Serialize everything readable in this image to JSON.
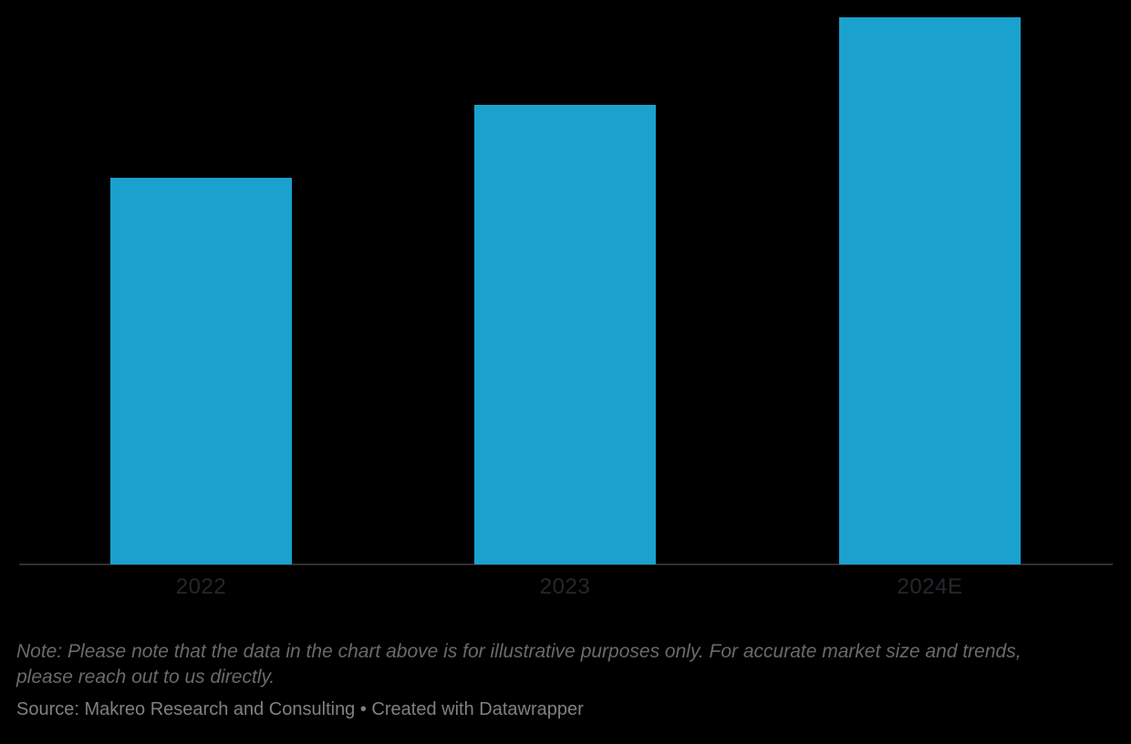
{
  "chart_data": {
    "type": "bar",
    "categories": [
      "2022",
      "2023",
      "2024E"
    ],
    "values": [
      424,
      504,
      600
    ],
    "values_note": "bar heights in screen px; no value axis shown, relative values approx 71 : 84 : 100",
    "title": "",
    "xlabel": "",
    "ylabel": "",
    "grid": false,
    "legend": "none",
    "colors": {
      "bar": "#1aa1ce",
      "axis_line": "#2f2f33",
      "tick_label": "#26262c",
      "note_text": "#6a6a6a",
      "source_text": "#808080",
      "background": "#000000"
    }
  },
  "footer": {
    "note": "Note: Please note that the data in the chart above is for illustrative purposes only. For accurate market size and trends, please reach out to us directly.",
    "source": "Source: Makreo Research and Consulting • Created with Datawrapper"
  }
}
